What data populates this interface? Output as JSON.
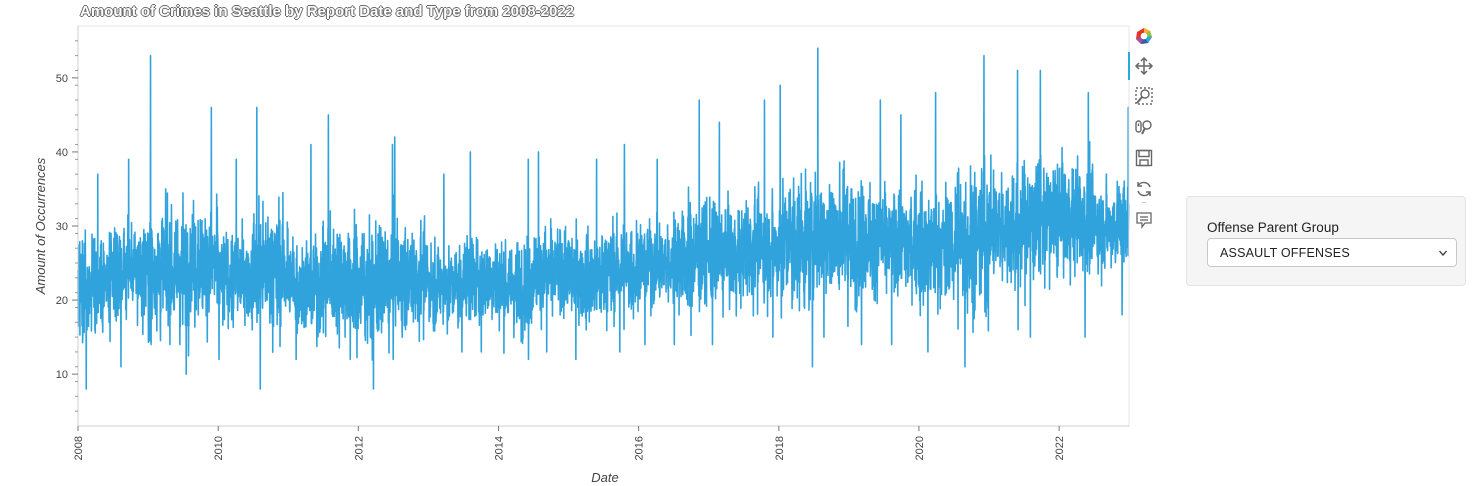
{
  "chart_data": {
    "type": "line",
    "title": "Amount of Crimes in Seattle by Report Date and Type from 2008-2022",
    "xlabel": "Date",
    "ylabel": "Amount of Occurrences",
    "x_ticks": [
      "2008",
      "2010",
      "2012",
      "2014",
      "2016",
      "2018",
      "2020",
      "2022"
    ],
    "y_ticks": [
      10,
      20,
      30,
      40,
      50
    ],
    "xlim": [
      "2008-01-01",
      "2022-12-31"
    ],
    "ylim": [
      3,
      57
    ],
    "series": [
      {
        "color": "#31a3dc",
        "sampling": "daily, shown as half-year mean and peak-to-trough extremes",
        "points": [
          {
            "period": "2008-H1",
            "mean": 22,
            "min": 8,
            "max": 37
          },
          {
            "period": "2008-H2",
            "mean": 24,
            "min": 11,
            "max": 39
          },
          {
            "period": "2009-H1",
            "mean": 24,
            "min": 14,
            "max": 53
          },
          {
            "period": "2009-H2",
            "mean": 25,
            "min": 10,
            "max": 46
          },
          {
            "period": "2010-H1",
            "mean": 23,
            "min": 12,
            "max": 39
          },
          {
            "period": "2010-H2",
            "mean": 24,
            "min": 8,
            "max": 46
          },
          {
            "period": "2011-H1",
            "mean": 22,
            "min": 12,
            "max": 41
          },
          {
            "period": "2011-H2",
            "mean": 23,
            "min": 12,
            "max": 45
          },
          {
            "period": "2012-H1",
            "mean": 22,
            "min": 8,
            "max": 41
          },
          {
            "period": "2012-H2",
            "mean": 23,
            "min": 12,
            "max": 42
          },
          {
            "period": "2013-H1",
            "mean": 22,
            "min": 13,
            "max": 37
          },
          {
            "period": "2013-H2",
            "mean": 23,
            "min": 13,
            "max": 40
          },
          {
            "period": "2014-H1",
            "mean": 22,
            "min": 12,
            "max": 39
          },
          {
            "period": "2014-H2",
            "mean": 24,
            "min": 13,
            "max": 40
          },
          {
            "period": "2015-H1",
            "mean": 23,
            "min": 12,
            "max": 39
          },
          {
            "period": "2015-H2",
            "mean": 24,
            "min": 13,
            "max": 41
          },
          {
            "period": "2016-H1",
            "mean": 25,
            "min": 14,
            "max": 39
          },
          {
            "period": "2016-H2",
            "mean": 26,
            "min": 14,
            "max": 47
          },
          {
            "period": "2017-H1",
            "mean": 26,
            "min": 14,
            "max": 44
          },
          {
            "period": "2017-H2",
            "mean": 27,
            "min": 15,
            "max": 47
          },
          {
            "period": "2018-H1",
            "mean": 28,
            "min": 11,
            "max": 49
          },
          {
            "period": "2018-H2",
            "mean": 29,
            "min": 15,
            "max": 54
          },
          {
            "period": "2019-H1",
            "mean": 28,
            "min": 14,
            "max": 47
          },
          {
            "period": "2019-H2",
            "mean": 28,
            "min": 14,
            "max": 45
          },
          {
            "period": "2020-H1",
            "mean": 27,
            "min": 13,
            "max": 48
          },
          {
            "period": "2020-H2",
            "mean": 28,
            "min": 11,
            "max": 53
          },
          {
            "period": "2021-H1",
            "mean": 30,
            "min": 16,
            "max": 51
          },
          {
            "period": "2021-H2",
            "mean": 31,
            "min": 15,
            "max": 51
          },
          {
            "period": "2022-H1",
            "mean": 31,
            "min": 15,
            "max": 48
          },
          {
            "period": "2022-H2",
            "mean": 30,
            "min": 18,
            "max": 46
          }
        ]
      }
    ],
    "grid": false,
    "legend": "none"
  },
  "toolbar": {
    "tools": [
      {
        "icon": "bokeh-logo-icon",
        "active": false
      },
      {
        "icon": "pan-icon",
        "active": true
      },
      {
        "icon": "box-zoom-icon",
        "active": false
      },
      {
        "icon": "wheel-zoom-icon",
        "active": false
      },
      {
        "icon": "save-icon",
        "active": false
      },
      {
        "icon": "reset-icon",
        "active": false
      },
      {
        "icon": "hover-icon",
        "active": false
      }
    ]
  },
  "filter_panel": {
    "label": "Offense Parent Group",
    "selected": "ASSAULT OFFENSES"
  }
}
